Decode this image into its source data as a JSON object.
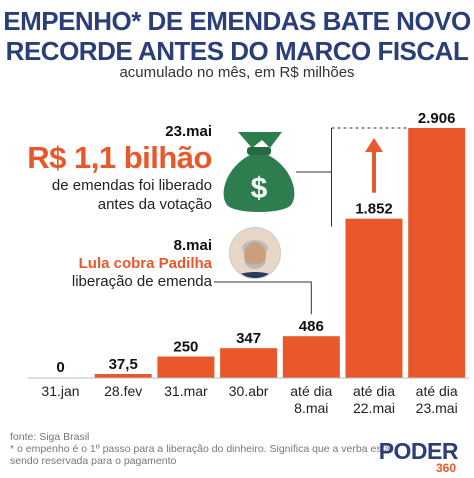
{
  "title_line1": "EMPENHO* DE EMENDAS BATE NOVO",
  "title_line2": "RECORDE ANTES DO MARCO FISCAL",
  "subtitle": "acumulado no mês, em R$ milhões",
  "annotation1": {
    "date": "23.mai",
    "amount": "R$ 1,1 bilhão",
    "line1": "de emendas foi liberado",
    "line2": "antes da votação",
    "icon": "money-bag-icon"
  },
  "annotation2": {
    "date": "8.mai",
    "highlight": "Lula cobra Padilha",
    "line1": "liberação de emenda",
    "icon": "avatar-photo"
  },
  "footer": {
    "source": "fonte: Siga Brasil",
    "note_line1": "* o empenho é o 1º passo para a liberação do dinheiro. Significa que a verba está",
    "note_line2": "sendo reservada para o pagamento"
  },
  "logo": {
    "main": "PODER",
    "sub": "360"
  },
  "colors": {
    "bar": "#e8582a",
    "title": "#2a3f7a",
    "bag": "#2e7d4f"
  },
  "chart_data": {
    "type": "bar",
    "categories": [
      "31.jan",
      "28.fev",
      "31.mar",
      "30.abr",
      "até dia 8.mai",
      "até dia 22.mai",
      "até dia 23.mai"
    ],
    "category_lines": [
      [
        "31.jan"
      ],
      [
        "28.fev"
      ],
      [
        "31.mar"
      ],
      [
        "30.abr"
      ],
      [
        "até dia",
        "8.mai"
      ],
      [
        "até dia",
        "22.mai"
      ],
      [
        "até dia",
        "23.mai"
      ]
    ],
    "values": [
      0,
      37.5,
      250,
      347,
      486,
      1852,
      2906
    ],
    "value_labels": [
      "0",
      "37,5",
      "250",
      "347",
      "486",
      "1.852",
      "2.906"
    ],
    "ylim": [
      0,
      2906
    ],
    "grid": false,
    "legend": "none"
  }
}
